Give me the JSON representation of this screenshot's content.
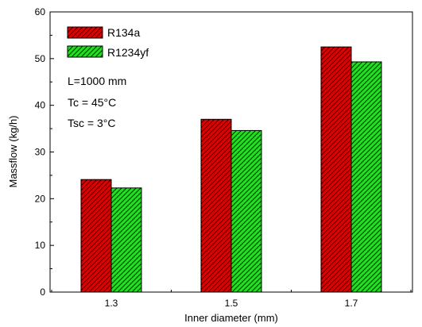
{
  "colors": {
    "R134a_fill": "#e00000",
    "R1234yf_fill": "#20e020",
    "hatch": "#000000",
    "axis": "#000000",
    "background": "#ffffff"
  },
  "annotations": [
    "L=1000 mm",
    "Tc = 45°C",
    "Tsc = 3°C"
  ],
  "chart_data": {
    "type": "bar",
    "title": "",
    "xlabel": "Inner diameter (mm)",
    "ylabel": "Massflow (kg/h)",
    "categories": [
      "1.3",
      "1.5",
      "1.7"
    ],
    "series": [
      {
        "name": "R134a",
        "values": [
          24.1,
          37.0,
          52.5
        ],
        "color": "#e00000",
        "pattern": "diagonal-hatch"
      },
      {
        "name": "R1234yf",
        "values": [
          22.3,
          34.6,
          49.3
        ],
        "color": "#20e020",
        "pattern": "diagonal-hatch"
      }
    ],
    "ylim": [
      0,
      60
    ],
    "yticks": [
      "0",
      "10",
      "20",
      "30",
      "40",
      "50",
      "60"
    ],
    "grid": false,
    "legend": "top-left"
  }
}
